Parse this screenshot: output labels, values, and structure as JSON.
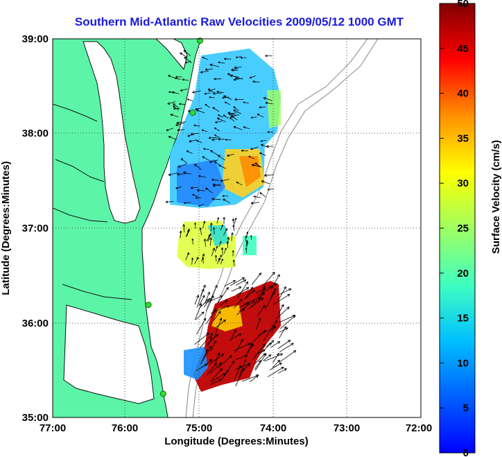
{
  "title": "Southern Mid-Atlantic Raw Velocities 2009/05/12 1000 GMT",
  "x_axis": {
    "label": "Longitude (Degrees:Minutes)",
    "ticks": [
      "77:00",
      "76:00",
      "75:00",
      "74:00",
      "73:00",
      "72:00"
    ]
  },
  "y_axis": {
    "label": "Latitude (Degrees:Minutes)",
    "ticks": [
      "39:00",
      "38:00",
      "37:00",
      "36:00",
      "35:00"
    ]
  },
  "colorbar": {
    "label": "Surface Velocity (cm/s)",
    "ticks": [
      "50",
      "45",
      "40",
      "35",
      "30",
      "25",
      "20",
      "15",
      "10",
      "5",
      "0"
    ],
    "min": 0,
    "max": 50,
    "colormap": "jet"
  },
  "map_extent": {
    "lon_west": -77,
    "lon_east": -72,
    "lat_south": 35,
    "lat_north": 39
  },
  "colors": {
    "land": "#5cf5a8",
    "coastline": "#111111",
    "bathymetry": "#999999",
    "title": "#1a1adc",
    "station": "#33dd33"
  },
  "radar_stations": [
    {
      "lon": -75.0,
      "lat": 38.98
    },
    {
      "lon": -75.1,
      "lat": 38.22
    },
    {
      "lon": -75.7,
      "lat": 36.19
    },
    {
      "lon": -75.5,
      "lat": 35.25
    }
  ]
}
